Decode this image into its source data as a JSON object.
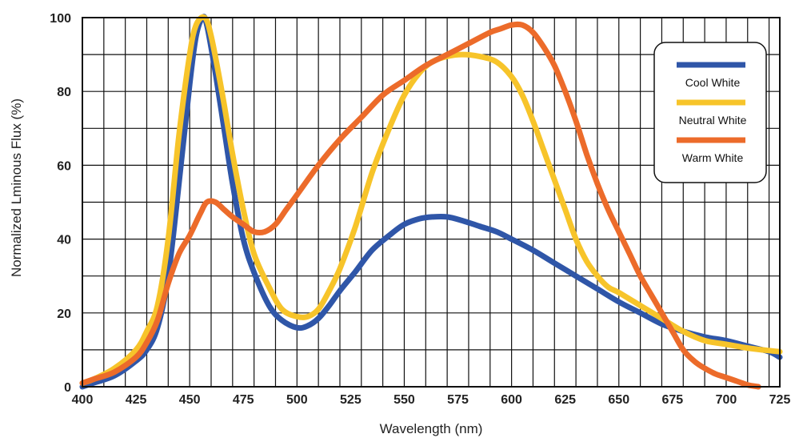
{
  "chart_data": {
    "type": "line",
    "title": "",
    "xlabel": "Wavelength (nm)",
    "ylabel": "Normalized Lminous Flux (%)",
    "xlim": [
      400,
      725
    ],
    "ylim": [
      0,
      100
    ],
    "x_ticks": [
      "400",
      "425",
      "450",
      "475",
      "500",
      "525",
      "550",
      "575",
      "600",
      "625",
      "650",
      "675",
      "700",
      "725"
    ],
    "y_ticks": [
      "0",
      "20",
      "40",
      "60",
      "80",
      "100"
    ],
    "grid": true,
    "legend_position": "top-right",
    "series": [
      {
        "name": "Cool White",
        "color": "#2f56a8",
        "x": [
          400,
          405,
          415,
          425,
          430,
          435,
          440,
          445,
          450,
          453,
          456,
          458,
          462,
          466,
          470,
          475,
          480,
          487,
          493,
          500,
          505,
          510,
          515,
          520,
          527,
          535,
          543,
          550,
          557,
          563,
          570,
          577,
          585,
          593,
          600,
          610,
          620,
          630,
          640,
          650,
          660,
          670,
          680,
          690,
          700,
          710,
          720,
          725
        ],
        "y": [
          0,
          1,
          3,
          7,
          10,
          16,
          30,
          55,
          82,
          95,
          100,
          98,
          85,
          70,
          55,
          40,
          31,
          22,
          18,
          16,
          16.5,
          18.5,
          22,
          26,
          31,
          37,
          41,
          44,
          45.5,
          46,
          46,
          45,
          43.5,
          42,
          40,
          37,
          33.5,
          30,
          26.5,
          23,
          20,
          17,
          15,
          13.5,
          12.5,
          11,
          9.5,
          8
        ]
      },
      {
        "name": "Neutral White",
        "color": "#f7c42a",
        "x": [
          400,
          405,
          415,
          425,
          430,
          435,
          440,
          445,
          450,
          453,
          457,
          460,
          465,
          470,
          475,
          480,
          487,
          493,
          500,
          505,
          510,
          515,
          520,
          527,
          535,
          543,
          550,
          557,
          563,
          570,
          577,
          585,
          593,
          600,
          605,
          610,
          615,
          620,
          625,
          630,
          635,
          640,
          645,
          650,
          660,
          670,
          680,
          690,
          700,
          710,
          720,
          725
        ],
        "y": [
          1,
          2,
          5,
          10,
          15,
          22,
          40,
          68,
          90,
          98,
          100,
          95,
          80,
          63,
          48,
          36,
          27,
          21,
          19,
          19,
          21,
          26,
          32,
          43,
          58,
          70,
          79,
          85,
          88,
          89.5,
          90,
          89.5,
          88,
          84,
          79,
          72,
          64,
          56,
          48,
          40,
          34,
          30,
          27,
          25.5,
          22,
          18.5,
          15,
          12.5,
          11.5,
          10.5,
          9.8,
          9.5
        ]
      },
      {
        "name": "Warm White",
        "color": "#ec6b2a",
        "x": [
          400,
          405,
          415,
          425,
          430,
          435,
          440,
          445,
          450,
          455,
          458,
          462,
          466,
          470,
          475,
          480,
          485,
          490,
          495,
          500,
          510,
          520,
          530,
          540,
          550,
          560,
          570,
          580,
          590,
          595,
          600,
          605,
          610,
          615,
          620,
          625,
          630,
          635,
          640,
          645,
          650,
          655,
          660,
          665,
          670,
          675,
          680,
          685,
          690,
          695,
          700,
          705,
          710,
          715
        ],
        "y": [
          1,
          2,
          4,
          8,
          12,
          18,
          28,
          36,
          41,
          47,
          50,
          50,
          48,
          46,
          44,
          42,
          42,
          44,
          48,
          52,
          60,
          67,
          73,
          79,
          83,
          87,
          90,
          93,
          96,
          97,
          98,
          98,
          96,
          92,
          87,
          80,
          72,
          63,
          55,
          48,
          42,
          36,
          30,
          25,
          20,
          15,
          10,
          7,
          5,
          3.5,
          2.5,
          1.5,
          0.5,
          0
        ]
      }
    ]
  }
}
